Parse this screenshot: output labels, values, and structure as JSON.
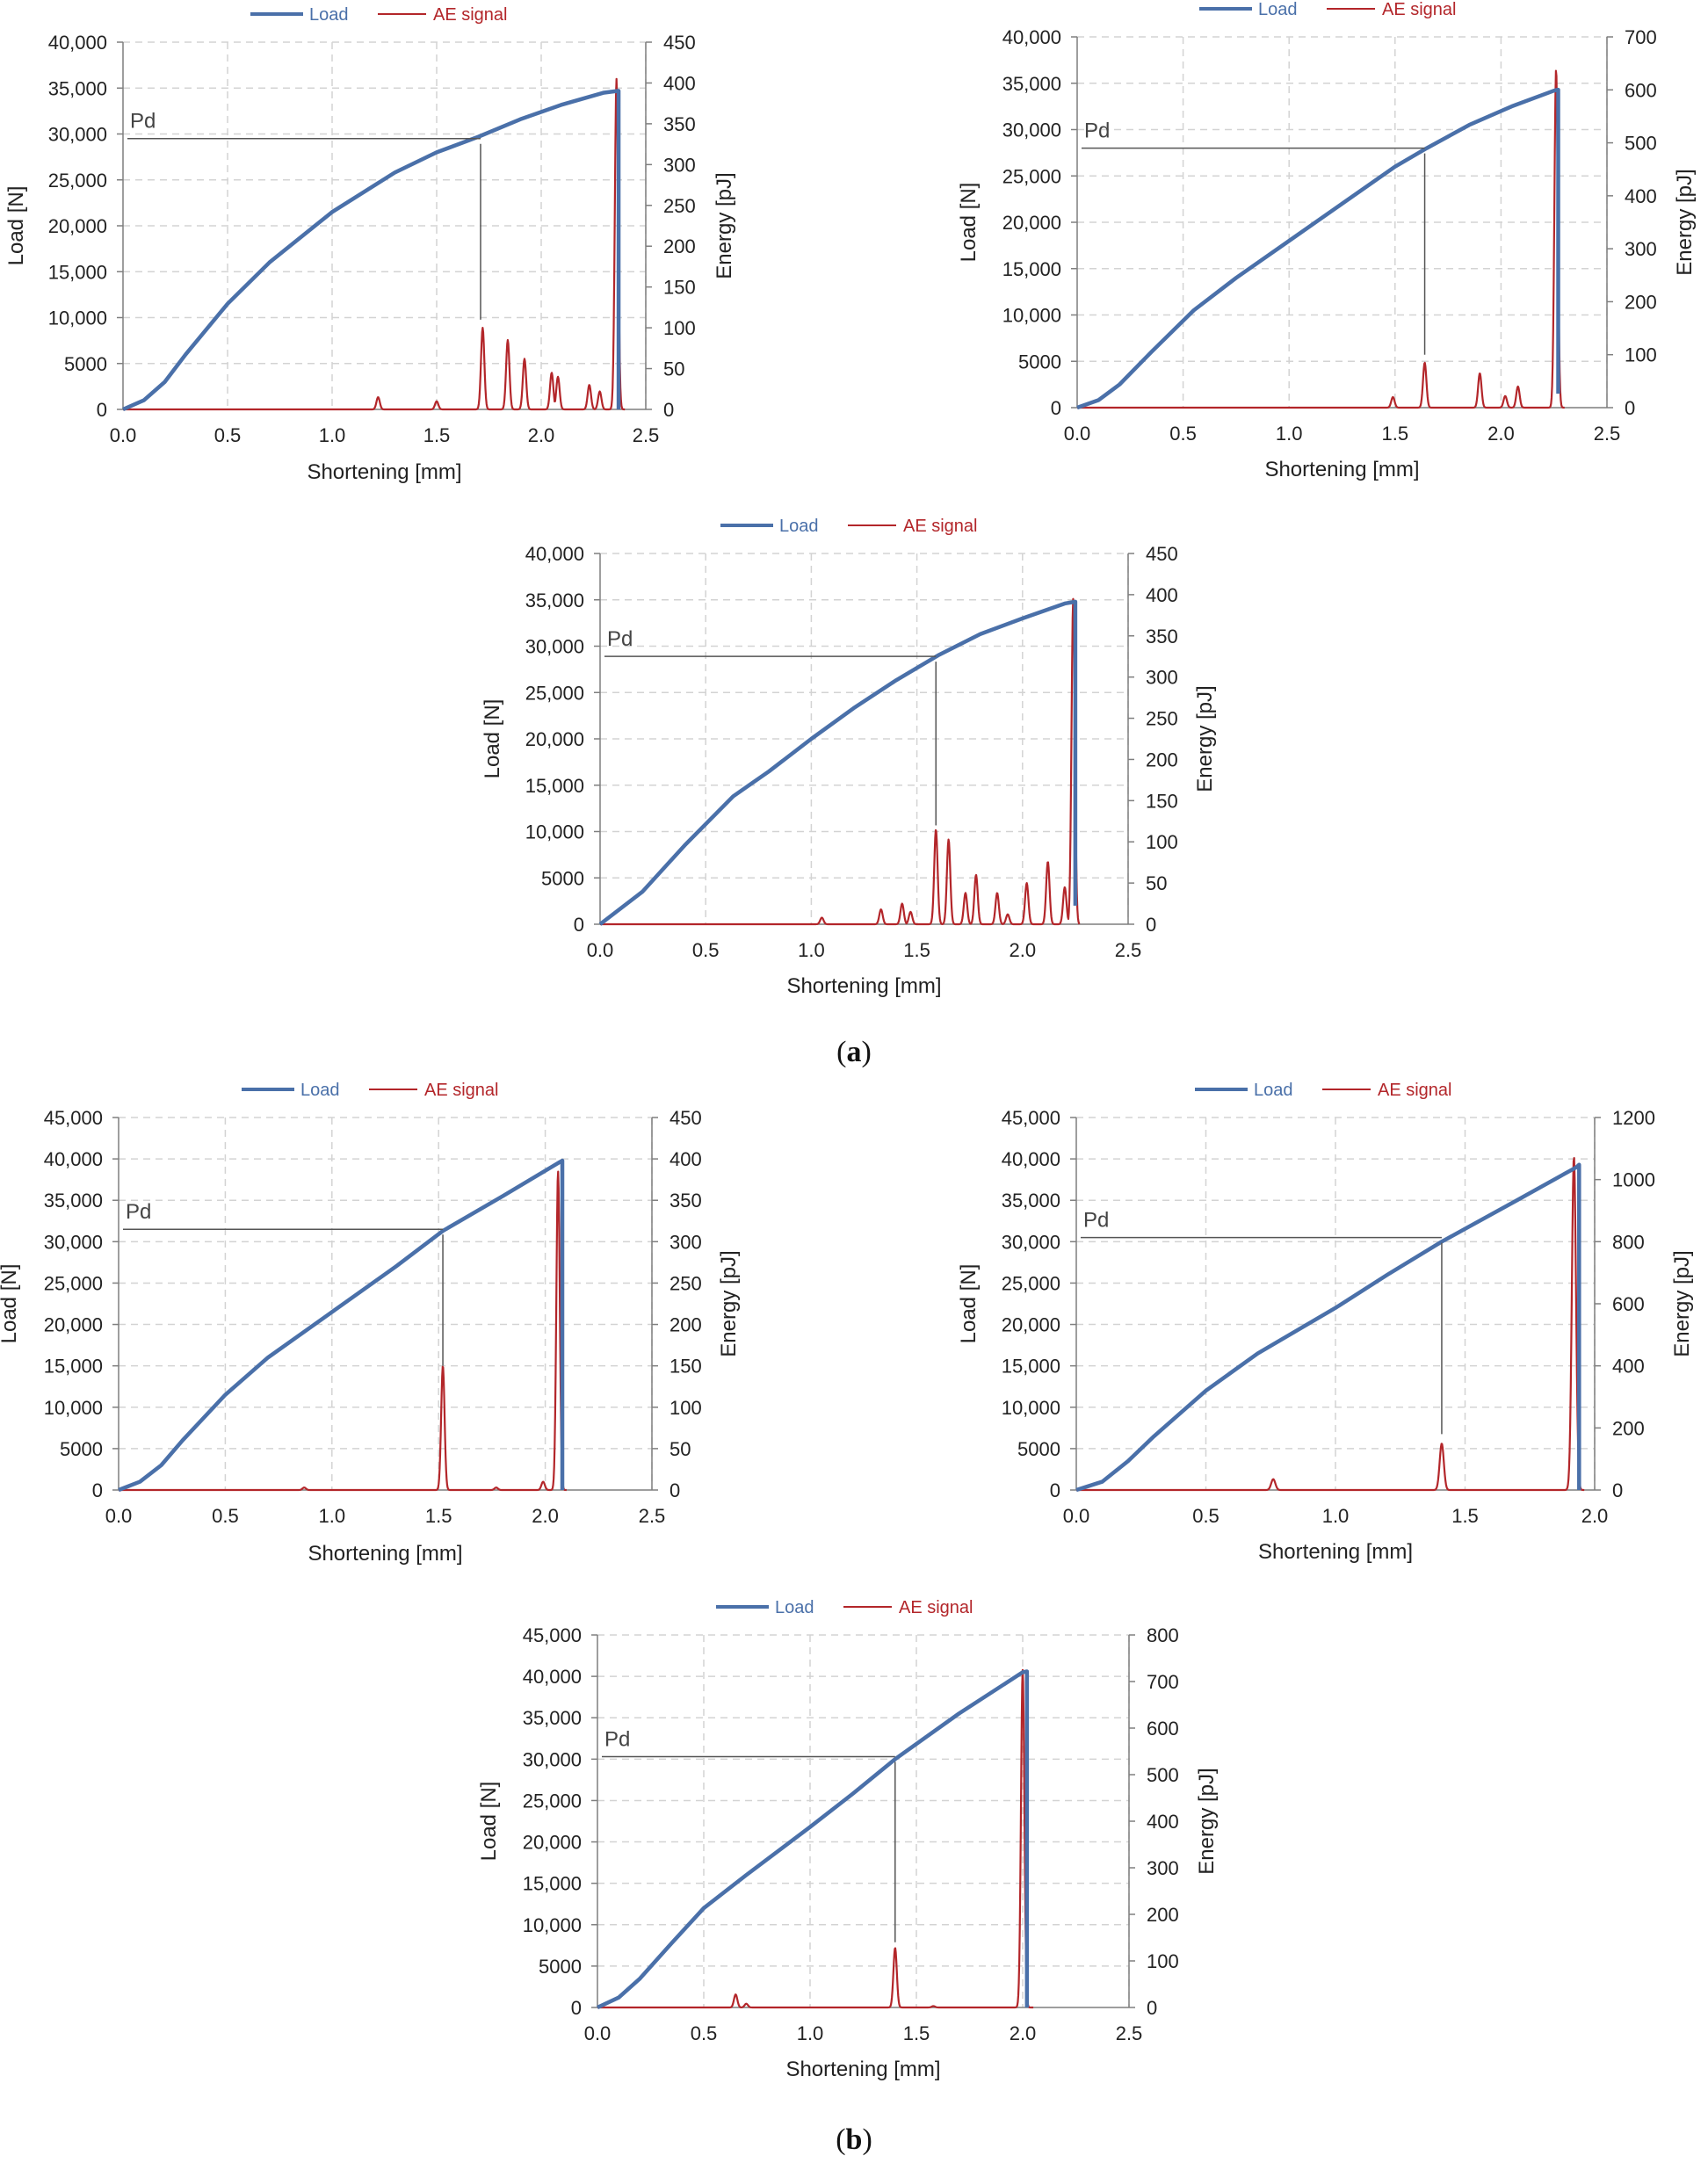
{
  "captions": [
    {
      "open": "(",
      "letter": "a",
      "close": ")"
    },
    {
      "open": "(",
      "letter": "b",
      "close": ")"
    }
  ],
  "colors": {
    "load": "#4A70A9",
    "ae": "#B3262A",
    "grid": "#d3d3d3",
    "axis": "#7f7f7f",
    "pd_line": "#555555"
  },
  "chart_data": [
    {
      "id": "a1",
      "type": "line",
      "legend": [
        "Load",
        "AE signal"
      ],
      "xlabel": "Shortening [mm]",
      "ylabel": "Load [N]",
      "y2label": "Energy [pJ]",
      "xlim": [
        0,
        2.5
      ],
      "ylim": [
        0,
        40000
      ],
      "y2lim": [
        0,
        450
      ],
      "xticks": [
        "0.0",
        "0.5",
        "1.0",
        "1.5",
        "2.0",
        "2.5"
      ],
      "yticks": [
        "0",
        "5000",
        "10,000",
        "15,000",
        "20,000",
        "25,000",
        "30,000",
        "35,000",
        "40,000"
      ],
      "y2ticks": [
        "0",
        "50",
        "100",
        "150",
        "200",
        "250",
        "300",
        "350",
        "400",
        "450"
      ],
      "pd_label": "Pd",
      "pd": {
        "x": 1.71,
        "load": 29500,
        "energy_drop": 110
      },
      "load": {
        "x": [
          0,
          0.1,
          0.2,
          0.3,
          0.5,
          0.7,
          1.0,
          1.3,
          1.5,
          1.7,
          1.9,
          2.1,
          2.3,
          2.37,
          2.37
        ],
        "y": [
          0,
          1000,
          3000,
          6000,
          11500,
          16000,
          21500,
          25800,
          28000,
          29700,
          31600,
          33200,
          34500,
          34700,
          0
        ]
      },
      "ae_base": [
        [
          0,
          0
        ],
        [
          2.4,
          0
        ]
      ],
      "ae_peaks": [
        {
          "x": 1.22,
          "e": 15
        },
        {
          "x": 1.5,
          "e": 10
        },
        {
          "x": 1.72,
          "e": 100
        },
        {
          "x": 1.84,
          "e": 85
        },
        {
          "x": 1.92,
          "e": 62
        },
        {
          "x": 2.05,
          "e": 45
        },
        {
          "x": 2.08,
          "e": 40
        },
        {
          "x": 2.23,
          "e": 30
        },
        {
          "x": 2.28,
          "e": 22
        },
        {
          "x": 2.36,
          "e": 405
        }
      ]
    },
    {
      "id": "a2",
      "type": "line",
      "legend": [
        "Load",
        "AE signal"
      ],
      "xlabel": "Shortening [mm]",
      "ylabel": "Load [N]",
      "y2label": "Energy [pJ]",
      "xlim": [
        0,
        2.5
      ],
      "ylim": [
        0,
        40000
      ],
      "y2lim": [
        0,
        700
      ],
      "xticks": [
        "0.0",
        "0.5",
        "1.0",
        "1.5",
        "2.0",
        "2.5"
      ],
      "yticks": [
        "0",
        "5000",
        "10,000",
        "15,000",
        "20,000",
        "25,000",
        "30,000",
        "35,000",
        "40,000"
      ],
      "y2ticks": [
        "0",
        "100",
        "200",
        "300",
        "400",
        "500",
        "600",
        "700"
      ],
      "pd_label": "Pd",
      "pd": {
        "x": 1.64,
        "load": 28000,
        "energy_drop": 100
      },
      "load": {
        "x": [
          0,
          0.1,
          0.2,
          0.35,
          0.55,
          0.75,
          1.0,
          1.25,
          1.5,
          1.65,
          1.85,
          2.05,
          2.25,
          2.27,
          2.27
        ],
        "y": [
          0,
          800,
          2500,
          6000,
          10500,
          14000,
          18000,
          22000,
          26000,
          28000,
          30500,
          32500,
          34200,
          34300,
          1500
        ]
      },
      "ae_base": [
        [
          0,
          0
        ],
        [
          2.3,
          0
        ]
      ],
      "ae_peaks": [
        {
          "x": 1.49,
          "e": 20
        },
        {
          "x": 1.64,
          "e": 85
        },
        {
          "x": 1.9,
          "e": 65
        },
        {
          "x": 2.02,
          "e": 22
        },
        {
          "x": 2.08,
          "e": 40
        },
        {
          "x": 2.26,
          "e": 640
        }
      ]
    },
    {
      "id": "a3",
      "type": "line",
      "legend": [
        "Load",
        "AE signal"
      ],
      "xlabel": "Shortening [mm]",
      "ylabel": "Load [N]",
      "y2label": "Energy [pJ]",
      "xlim": [
        0,
        2.5
      ],
      "ylim": [
        0,
        40000
      ],
      "y2lim": [
        0,
        450
      ],
      "xticks": [
        "0.0",
        "0.5",
        "1.0",
        "1.5",
        "2.0",
        "2.5"
      ],
      "yticks": [
        "0",
        "5000",
        "10,000",
        "15,000",
        "20,000",
        "25,000",
        "30,000",
        "35,000",
        "40,000"
      ],
      "y2ticks": [
        "0",
        "50",
        "100",
        "150",
        "200",
        "250",
        "300",
        "350",
        "400",
        "450"
      ],
      "pd_label": "Pd",
      "pd": {
        "x": 1.59,
        "load": 28900,
        "energy_drop": 120
      },
      "load": {
        "x": [
          0,
          0.2,
          0.4,
          0.63,
          0.8,
          1.0,
          1.2,
          1.4,
          1.6,
          1.8,
          2.0,
          2.2,
          2.25,
          2.25
        ],
        "y": [
          0,
          3500,
          8500,
          13800,
          16500,
          20000,
          23300,
          26300,
          29000,
          31300,
          33000,
          34600,
          34800,
          2000
        ]
      },
      "ae_base": [
        [
          0,
          0
        ],
        [
          2.27,
          0
        ]
      ],
      "ae_peaks": [
        {
          "x": 1.05,
          "e": 8
        },
        {
          "x": 1.33,
          "e": 18
        },
        {
          "x": 1.43,
          "e": 25
        },
        {
          "x": 1.47,
          "e": 15
        },
        {
          "x": 1.59,
          "e": 115
        },
        {
          "x": 1.65,
          "e": 103
        },
        {
          "x": 1.73,
          "e": 38
        },
        {
          "x": 1.78,
          "e": 60
        },
        {
          "x": 1.88,
          "e": 38
        },
        {
          "x": 1.93,
          "e": 12
        },
        {
          "x": 2.02,
          "e": 50
        },
        {
          "x": 2.12,
          "e": 76
        },
        {
          "x": 2.2,
          "e": 45
        },
        {
          "x": 2.24,
          "e": 395
        }
      ]
    },
    {
      "id": "b1",
      "type": "line",
      "legend": [
        "Load",
        "AE signal"
      ],
      "xlabel": "Shortening [mm]",
      "ylabel": "Load [N]",
      "y2label": "Energy [pJ]",
      "xlim": [
        0,
        2.5
      ],
      "ylim": [
        0,
        45000
      ],
      "y2lim": [
        0,
        450
      ],
      "xticks": [
        "0.0",
        "0.5",
        "1.0",
        "1.5",
        "2.0",
        "2.5"
      ],
      "yticks": [
        "0",
        "5000",
        "10,000",
        "15,000",
        "20,000",
        "25,000",
        "30,000",
        "35,000",
        "40,000",
        "45,000"
      ],
      "y2ticks": [
        "0",
        "50",
        "100",
        "150",
        "200",
        "250",
        "300",
        "350",
        "400",
        "450"
      ],
      "pd_label": "Pd",
      "pd": {
        "x": 1.52,
        "load": 31500,
        "energy_drop": 150
      },
      "load": {
        "x": [
          0,
          0.1,
          0.2,
          0.3,
          0.5,
          0.7,
          1.0,
          1.3,
          1.52,
          1.8,
          2.08,
          2.08
        ],
        "y": [
          0,
          1000,
          3000,
          6000,
          11500,
          16000,
          21500,
          27000,
          31300,
          35500,
          39800,
          0
        ]
      },
      "ae_base": [
        [
          0,
          0
        ],
        [
          2.1,
          0
        ]
      ],
      "ae_peaks": [
        {
          "x": 0.87,
          "e": 3
        },
        {
          "x": 1.52,
          "e": 150
        },
        {
          "x": 1.77,
          "e": 3
        },
        {
          "x": 1.99,
          "e": 10
        },
        {
          "x": 2.06,
          "e": 385
        }
      ]
    },
    {
      "id": "b2",
      "type": "line",
      "legend": [
        "Load",
        "AE signal"
      ],
      "xlabel": "Shortening [mm]",
      "ylabel": "Load [N]",
      "y2label": "Energy [pJ]",
      "xlim": [
        0,
        2.0
      ],
      "ylim": [
        0,
        45000
      ],
      "y2lim": [
        0,
        1200
      ],
      "xticks": [
        "0.0",
        "0.5",
        "1.0",
        "1.5",
        "2.0"
      ],
      "yticks": [
        "0",
        "5000",
        "10,000",
        "15,000",
        "20,000",
        "25,000",
        "30,000",
        "35,000",
        "40,000",
        "45,000"
      ],
      "y2ticks": [
        "0",
        "200",
        "400",
        "600",
        "800",
        "1000",
        "1200"
      ],
      "pd_label": "Pd",
      "pd": {
        "x": 1.41,
        "load": 30500,
        "energy_drop": 180
      },
      "load": {
        "x": [
          0,
          0.1,
          0.2,
          0.3,
          0.5,
          0.7,
          1.0,
          1.2,
          1.41,
          1.7,
          1.93,
          1.94,
          1.94
        ],
        "y": [
          0,
          1000,
          3500,
          6500,
          12000,
          16500,
          22000,
          26000,
          30000,
          35000,
          39000,
          39300,
          0
        ]
      },
      "ae_base": [
        [
          0,
          0
        ],
        [
          1.96,
          0
        ]
      ],
      "ae_peaks": [
        {
          "x": 0.76,
          "e": 35
        },
        {
          "x": 1.41,
          "e": 150
        },
        {
          "x": 1.92,
          "e": 1075
        }
      ]
    },
    {
      "id": "b3",
      "type": "line",
      "legend": [
        "Load",
        "AE signal"
      ],
      "xlabel": "Shortening [mm]",
      "ylabel": "Load [N]",
      "y2label": "Energy [pJ]",
      "xlim": [
        0,
        2.5
      ],
      "ylim": [
        0,
        45000
      ],
      "y2lim": [
        0,
        800
      ],
      "xticks": [
        "0.0",
        "0.5",
        "1.0",
        "1.5",
        "2.0",
        "2.5"
      ],
      "yticks": [
        "0",
        "5000",
        "10,000",
        "15,000",
        "20,000",
        "25,000",
        "30,000",
        "35,000",
        "40,000",
        "45,000"
      ],
      "y2ticks": [
        "0",
        "100",
        "200",
        "300",
        "400",
        "500",
        "600",
        "700",
        "800"
      ],
      "pd_label": "Pd",
      "pd": {
        "x": 1.4,
        "load": 30300,
        "energy_drop": 140
      },
      "load": {
        "x": [
          0,
          0.1,
          0.2,
          0.35,
          0.5,
          0.7,
          1.0,
          1.2,
          1.4,
          1.7,
          2.0,
          2.02,
          2.02
        ],
        "y": [
          0,
          1200,
          3500,
          7800,
          12000,
          16000,
          21800,
          25800,
          30000,
          35500,
          40500,
          40600,
          0
        ]
      },
      "ae_base": [
        [
          0,
          0
        ],
        [
          2.05,
          0
        ]
      ],
      "ae_peaks": [
        {
          "x": 0.65,
          "e": 28
        },
        {
          "x": 0.7,
          "e": 8
        },
        {
          "x": 1.4,
          "e": 128
        },
        {
          "x": 1.58,
          "e": 3
        },
        {
          "x": 2.0,
          "e": 725
        }
      ]
    }
  ]
}
